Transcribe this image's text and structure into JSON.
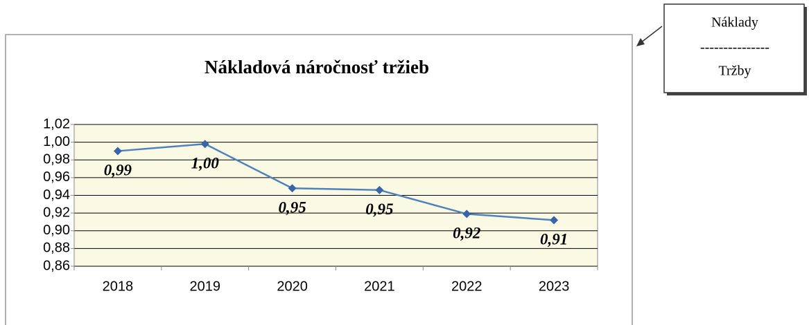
{
  "chart_data": {
    "type": "line",
    "title": "Nákladová náročnosť tržieb",
    "categories": [
      "2018",
      "2019",
      "2020",
      "2021",
      "2022",
      "2023"
    ],
    "series": [
      {
        "name": "Nákladová náročnosť tržieb",
        "color": "#4f81bd",
        "values": [
          0.99,
          0.998,
          0.948,
          0.946,
          0.919,
          0.912
        ],
        "value_labels": [
          "0,99",
          "1,00",
          "0,95",
          "0,95",
          "0,92",
          "0,91"
        ]
      }
    ],
    "ylim": [
      0.86,
      1.02
    ],
    "yticks": [
      {
        "value": 0.86,
        "label": "0,86"
      },
      {
        "value": 0.88,
        "label": "0,88"
      },
      {
        "value": 0.9,
        "label": "0,90"
      },
      {
        "value": 0.92,
        "label": "0,92"
      },
      {
        "value": 0.94,
        "label": "0,94"
      },
      {
        "value": 0.96,
        "label": "0,96"
      },
      {
        "value": 0.98,
        "label": "0,98"
      },
      {
        "value": 1.0,
        "label": "1,00"
      },
      {
        "value": 1.02,
        "label": "1,02"
      }
    ],
    "grid": true,
    "annotation": {
      "numerator": "Náklady",
      "separator": "---------------",
      "denominator": "Tržby"
    }
  }
}
